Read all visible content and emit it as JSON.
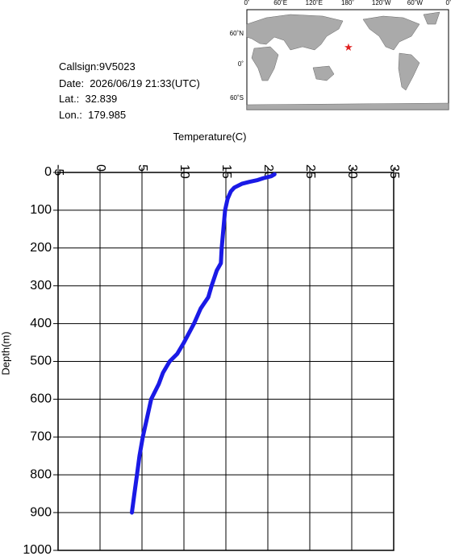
{
  "info": {
    "callsign": "Callsign:9V5023",
    "date": "Date:  2026/06/19 21:33(UTC)",
    "lat": "Lat.:  32.839",
    "lon": "Lon.:  179.985"
  },
  "map": {
    "lon_labels": [
      "0˚",
      "60˚E",
      "120˚E",
      "180˚",
      "120˚W",
      "60˚W",
      "0˚"
    ],
    "lat_labels": [
      "60˚N",
      "0˚",
      "60˚S"
    ]
  },
  "chart_data": {
    "type": "profile",
    "x_label": "Temperature(C)",
    "y_label": "Depth(m)",
    "xlim": [
      -5,
      35
    ],
    "xticks": [
      -5,
      0,
      5,
      10,
      15,
      20,
      25,
      30,
      35
    ],
    "ylim": [
      0,
      1000
    ],
    "yticks": [
      0,
      100,
      200,
      300,
      400,
      500,
      600,
      700,
      800,
      900,
      1000
    ],
    "grid": true,
    "series": [
      {
        "color": "#1a1ae6",
        "x": [
          20.8,
          20.4,
          19.5,
          18.8,
          17.8,
          16.9,
          16.0,
          15.6,
          15.2,
          14.9,
          14.7,
          14.5,
          14.4,
          13.9,
          13.3,
          12.9,
          12.0,
          11.2,
          10.0,
          9.2,
          8.3,
          7.5,
          7.0,
          6.1,
          5.6,
          5.1,
          4.7,
          4.4,
          4.1,
          3.8
        ],
        "values": [
          5,
          10,
          15,
          20,
          25,
          30,
          40,
          50,
          70,
          100,
          150,
          200,
          240,
          260,
          300,
          330,
          360,
          400,
          450,
          480,
          500,
          530,
          560,
          600,
          650,
          700,
          750,
          800,
          850,
          900
        ]
      }
    ]
  }
}
